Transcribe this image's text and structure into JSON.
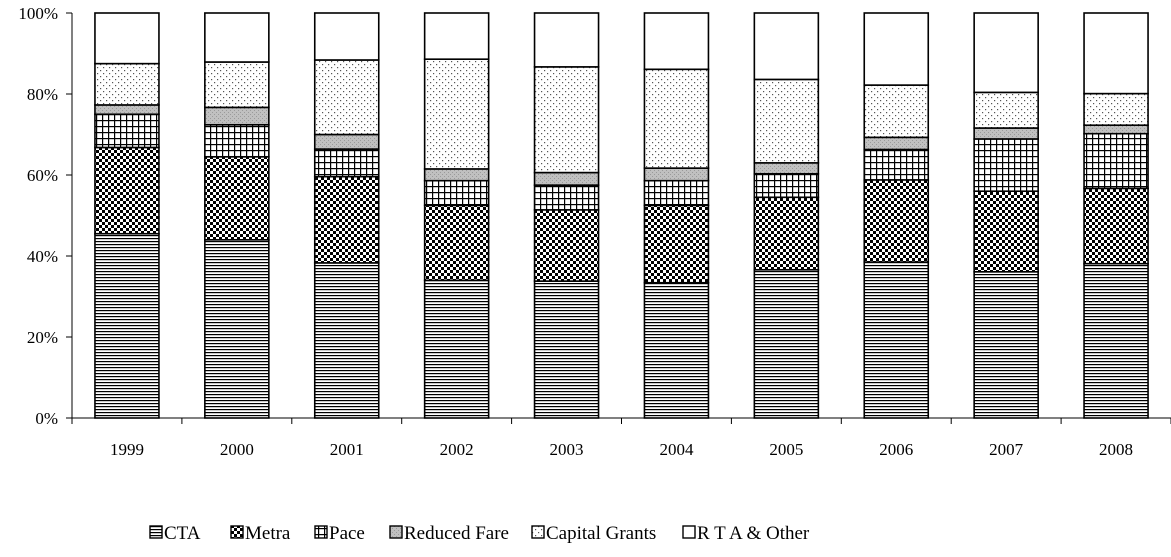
{
  "chart_data": {
    "type": "bar",
    "stacked": true,
    "percent": true,
    "categories": [
      "1999",
      "2000",
      "2001",
      "2002",
      "2003",
      "2004",
      "2005",
      "2006",
      "2007",
      "2008"
    ],
    "series": [
      {
        "name": "CTA",
        "pattern": "horizontal-lines",
        "values": [
          45.5,
          44.0,
          38.3,
          34.0,
          33.8,
          33.4,
          36.6,
          38.5,
          36.1,
          38.1
        ]
      },
      {
        "name": "Metra",
        "pattern": "checker",
        "values": [
          21.3,
          20.5,
          21.3,
          18.5,
          17.6,
          19.1,
          17.9,
          20.3,
          19.9,
          18.6
        ]
      },
      {
        "name": "Pace",
        "pattern": "grid",
        "values": [
          8.2,
          7.9,
          6.8,
          6.1,
          6.1,
          6.1,
          5.8,
          7.5,
          12.9,
          13.5
        ]
      },
      {
        "name": "Reduced Fare",
        "pattern": "light-gray",
        "values": [
          2.3,
          4.3,
          3.6,
          2.9,
          3.1,
          3.1,
          2.7,
          3.0,
          2.7,
          2.1
        ]
      },
      {
        "name": "Capital Grants",
        "pattern": "dots",
        "values": [
          10.2,
          11.2,
          18.4,
          27.1,
          26.1,
          24.4,
          20.6,
          12.9,
          8.8,
          7.8
        ]
      },
      {
        "name": "R T A & Other",
        "pattern": "white",
        "values": [
          12.5,
          12.1,
          11.6,
          11.4,
          13.3,
          13.9,
          16.4,
          17.8,
          19.6,
          19.9
        ]
      }
    ],
    "yticks": [
      "0%",
      "20%",
      "40%",
      "60%",
      "80%",
      "100%"
    ],
    "ylim": [
      0,
      100
    ],
    "title": "",
    "xlabel": "",
    "ylabel": "",
    "grid": false,
    "legend": "bottom"
  }
}
